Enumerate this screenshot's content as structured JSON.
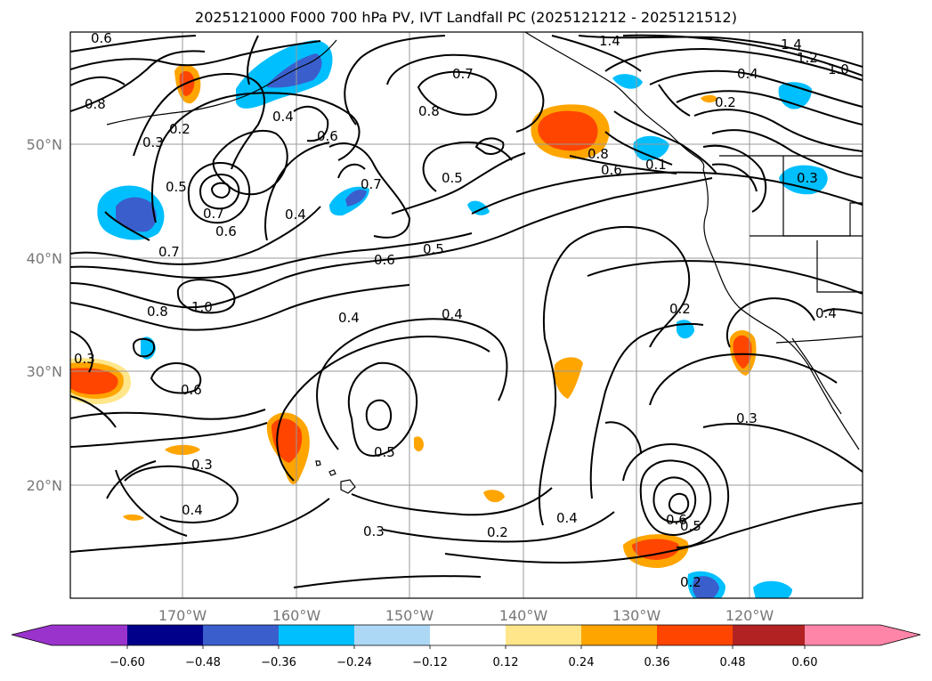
{
  "title": "2025121000 F000 700 hPa PV, IVT Landfall PC (2025121212 - 2025121512)",
  "lat_labels": [
    "50°N",
    "40°N",
    "30°N",
    "20°N"
  ],
  "lon_labels": [
    "170°W",
    "160°W",
    "150°W",
    "140°W",
    "130°W",
    "120°W"
  ],
  "contour_labels": [
    "0.6",
    "1.4",
    "1.4",
    "1.2",
    "1.0",
    "0.4",
    "0.2",
    "0.8",
    "0.3",
    "0.2",
    "0.4",
    "0.7",
    "0.8",
    "0.6",
    "0.5",
    "0.7",
    "0.4",
    "0.7",
    "0.6",
    "0.5",
    "0.8",
    "0.6",
    "0.1",
    "0.3",
    "0.7",
    "0.6",
    "0.5",
    "0.8",
    "1.0",
    "0.4",
    "0.4",
    "0.2",
    "0.4",
    "0.3",
    "0.6",
    "0.3",
    "0.5",
    "0.3",
    "0.4",
    "0.3",
    "0.2",
    "0.4",
    "0.6",
    "0.5",
    "0.2"
  ],
  "colorbar": {
    "ticks": [
      "−0.60",
      "−0.48",
      "−0.36",
      "−0.24",
      "−0.12",
      "0.12",
      "0.24",
      "0.36",
      "0.48",
      "0.60"
    ],
    "colors": [
      "#9933cc",
      "#00008b",
      "#3a5fcd",
      "#00bfff",
      "#add8f5",
      "#ffffff",
      "#ffe68a",
      "#ffa500",
      "#ff4500",
      "#b22222",
      "#ff85a8"
    ]
  }
}
